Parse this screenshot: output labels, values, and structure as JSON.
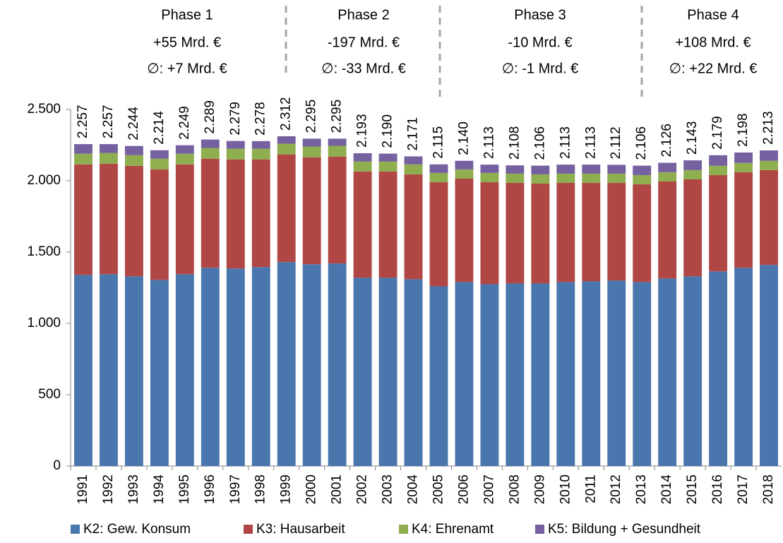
{
  "chart_data": {
    "type": "stacked_bar",
    "categories": [
      "1991",
      "1992",
      "1993",
      "1994",
      "1995",
      "1996",
      "1997",
      "1998",
      "1999",
      "2000",
      "2001",
      "2002",
      "2003",
      "2004",
      "2005",
      "2006",
      "2007",
      "2008",
      "2009",
      "2010",
      "2011",
      "2012",
      "2013",
      "2014",
      "2015",
      "2016",
      "2017",
      "2018"
    ],
    "series": [
      {
        "name": "K2: Gew. Konsum",
        "color": "#4a76ae",
        "values": [
          1340,
          1345,
          1330,
          1305,
          1345,
          1390,
          1385,
          1395,
          1430,
          1415,
          1420,
          1320,
          1320,
          1310,
          1260,
          1290,
          1275,
          1280,
          1280,
          1290,
          1295,
          1300,
          1290,
          1315,
          1330,
          1365,
          1390,
          1410
        ]
      },
      {
        "name": "K3: Hausarbeit",
        "color": "#b04744",
        "values": [
          775,
          775,
          775,
          775,
          770,
          765,
          765,
          755,
          755,
          750,
          750,
          745,
          745,
          735,
          730,
          725,
          715,
          705,
          700,
          695,
          690,
          685,
          685,
          680,
          680,
          675,
          670,
          665
        ]
      },
      {
        "name": "K4: Ehrenamt",
        "color": "#8fae4f",
        "values": [
          75,
          75,
          75,
          75,
          75,
          75,
          75,
          75,
          75,
          75,
          75,
          70,
          70,
          70,
          65,
          65,
          65,
          65,
          65,
          65,
          65,
          65,
          65,
          65,
          65,
          65,
          65,
          65
        ]
      },
      {
        "name": "K5: Bildung + Gesundheit",
        "color": "#7560a0",
        "values": [
          67,
          62,
          64,
          59,
          59,
          59,
          54,
          53,
          52,
          55,
          50,
          58,
          55,
          56,
          60,
          60,
          58,
          58,
          61,
          63,
          63,
          62,
          66,
          66,
          68,
          74,
          73,
          73
        ]
      }
    ],
    "totals": {
      "values": [
        2257,
        2257,
        2244,
        2214,
        2249,
        2289,
        2279,
        2278,
        2312,
        2295,
        2295,
        2193,
        2190,
        2171,
        2115,
        2140,
        2113,
        2108,
        2106,
        2113,
        2113,
        2112,
        2106,
        2126,
        2143,
        2179,
        2198,
        2213
      ],
      "value_labels": [
        "2.257",
        "2.257",
        "2.244",
        "2.214",
        "2.249",
        "2.289",
        "2.279",
        "2.278",
        "2.312",
        "2.295",
        "2.295",
        "2.193",
        "2.190",
        "2.171",
        "2.115",
        "2.140",
        "2.113",
        "2.108",
        "2.106",
        "2.113",
        "2.113",
        "2.112",
        "2.106",
        "2.126",
        "2.143",
        "2.179",
        "2.198",
        "2.213"
      ]
    },
    "ylim": [
      0,
      2500
    ],
    "yticks": [
      0,
      500,
      {
        "value": 1000,
        "label": "1.000"
      },
      {
        "value": 1500,
        "label": "1.500"
      },
      {
        "value": 2000,
        "label": "2.000"
      },
      {
        "value": 2500,
        "label": "2.500"
      }
    ],
    "grid": false,
    "legend": "bottom",
    "phases": [
      {
        "title": "Phase 1",
        "change": "+55 Mrd. €",
        "average": "∅: +7 Mrd. €",
        "color": "#92c050"
      },
      {
        "title": "Phase 2",
        "change": "-197 Mrd. €",
        "average": "∅: -33 Mrd. €",
        "color": "#c0504d"
      },
      {
        "title": "Phase 3",
        "change": "-10 Mrd. €",
        "average": "∅: -1 Mrd. €",
        "color": "#c0504d"
      },
      {
        "title": "Phase 4",
        "change": "+108 Mrd. €",
        "average": "∅: +22 Mrd. €",
        "color": "#92c050"
      }
    ]
  }
}
